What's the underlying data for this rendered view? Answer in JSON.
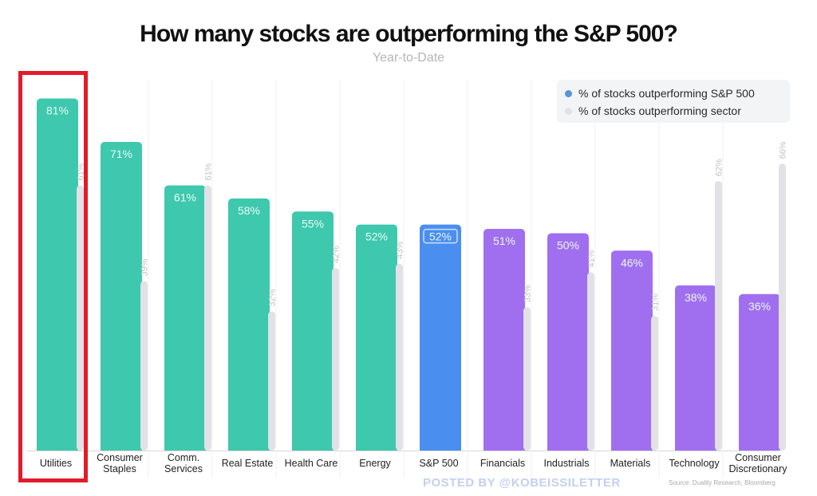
{
  "chart_data": {
    "type": "bar",
    "title": "How many stocks are outperforming the S&P 500?",
    "subtitle": "Year-to-Date",
    "xlabel": "",
    "ylabel": "",
    "ylim": [
      0,
      100
    ],
    "grid": false,
    "legend_position": "top-right",
    "categories": [
      "Utilities",
      "Consumer Staples",
      "Comm. Services",
      "Real Estate",
      "Health Care",
      "Energy",
      "S&P 500",
      "Financials",
      "Industrials",
      "Materials",
      "Technology",
      "Consumer Discretionary"
    ],
    "category_label_lines": [
      [
        "Utilities"
      ],
      [
        "Consumer",
        "Staples"
      ],
      [
        "Comm.",
        "Services"
      ],
      [
        "Real Estate"
      ],
      [
        "Health Care"
      ],
      [
        "Energy"
      ],
      [
        "S&P 500"
      ],
      [
        "Financials"
      ],
      [
        "Industrials"
      ],
      [
        "Materials"
      ],
      [
        "Technology"
      ],
      [
        "Consumer",
        "Discretionary"
      ]
    ],
    "series": [
      {
        "name": "% of stocks outperforming S&P 500",
        "values": [
          81,
          71,
          61,
          58,
          55,
          52,
          52,
          51,
          50,
          46,
          38,
          36
        ],
        "labels": [
          "81%",
          "71%",
          "61%",
          "58%",
          "55%",
          "52%",
          "52%",
          "51%",
          "50%",
          "46%",
          "38%",
          "36%"
        ]
      },
      {
        "name": "% of stocks outperforming sector",
        "values": [
          61,
          39,
          61,
          32,
          42,
          43,
          null,
          33,
          41,
          31,
          62,
          66
        ],
        "labels": [
          "61%",
          "39%",
          "61%",
          "32%",
          "42%",
          "43%",
          null,
          "33%",
          "41%",
          "31%",
          "62%",
          "66%"
        ]
      }
    ],
    "bar_colors": [
      "#3ec8ad",
      "#3ec8ad",
      "#3ec8ad",
      "#3ec8ad",
      "#3ec8ad",
      "#3ec8ad",
      "#4a8ef0",
      "#a06ff0",
      "#a06ff0",
      "#a06ff0",
      "#a06ff0",
      "#a06ff0"
    ],
    "highlighted_category": "Utilities",
    "colors": {
      "outperform_sp500_legend": "#5b93dc",
      "outperform_sector": "#e1e1e6",
      "defensive": "#3ec8ad",
      "index": "#4a8ef0",
      "cyclical": "#a06ff0",
      "highlight_box": "#e21b2a"
    }
  },
  "legend": {
    "items": [
      {
        "label": "% of stocks outperforming S&P 500",
        "color": "#5b93dc"
      },
      {
        "label": "% of stocks outperforming sector",
        "color": "#e1e1e6"
      }
    ]
  },
  "footer": {
    "watermark": "POSTED BY @KOBEISSILETTER",
    "source": "Source: Duality Research, Bloomberg"
  }
}
